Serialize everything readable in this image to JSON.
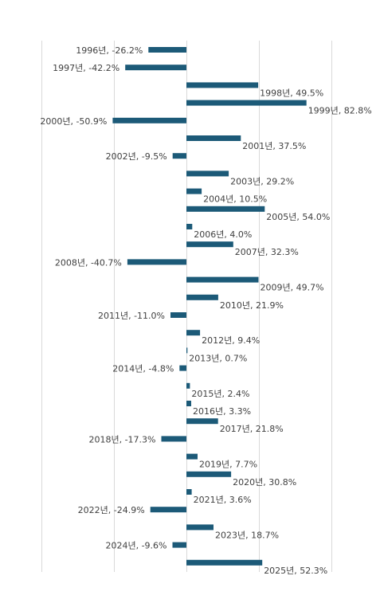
{
  "chart_data": {
    "type": "bar",
    "orientation": "horizontal",
    "bar_color": "#1c5a78",
    "grid": true,
    "grid_color": "#d9d9d9",
    "xlim": [
      -100,
      100
    ],
    "legend": "none",
    "label_format": "{category}, {value}%",
    "categories": [
      "1996년",
      "1997년",
      "1998년",
      "1999년",
      "2000년",
      "2001년",
      "2002년",
      "2003년",
      "2004년",
      "2005년",
      "2006년",
      "2007년",
      "2008년",
      "2009년",
      "2010년",
      "2011년",
      "2012년",
      "2013년",
      "2014년",
      "2015년",
      "2016년",
      "2017년",
      "2018년",
      "2019년",
      "2020년",
      "2021년",
      "2022년",
      "2023년",
      "2024년",
      "2025년"
    ],
    "values": [
      -26.2,
      -42.2,
      49.5,
      82.8,
      -50.9,
      37.5,
      -9.5,
      29.2,
      10.5,
      54.0,
      4.0,
      32.3,
      -40.7,
      49.7,
      21.9,
      -11.0,
      9.4,
      0.7,
      -4.8,
      2.4,
      3.3,
      21.8,
      -17.3,
      7.7,
      30.8,
      3.6,
      -24.9,
      18.7,
      -9.6,
      52.3
    ],
    "labels": [
      "1996년, -26.2%",
      "1997년, -42.2%",
      "1998년, 49.5%",
      "1999년, 82.8%",
      "2000년, -50.9%",
      "2001년, 37.5%",
      "2002년, -9.5%",
      "2003년, 29.2%",
      "2004년, 10.5%",
      "2005년, 54.0%",
      "2006년, 4.0%",
      "2007년, 32.3%",
      "2008년, -40.7%",
      "2009년, 49.7%",
      "2010년, 21.9%",
      "2011년, -11.0%",
      "2012년, 9.4%",
      "2013년, 0.7%",
      "2014년, -4.8%",
      "2015년, 2.4%",
      "2016년, 3.3%",
      "2017년, 21.8%",
      "2018년, -17.3%",
      "2019년, 7.7%",
      "2020년, 30.8%",
      "2021년, 3.6%",
      "2022년, -24.9%",
      "2023년, 18.7%",
      "2024년, -9.6%",
      "2025년, 52.3%"
    ]
  }
}
